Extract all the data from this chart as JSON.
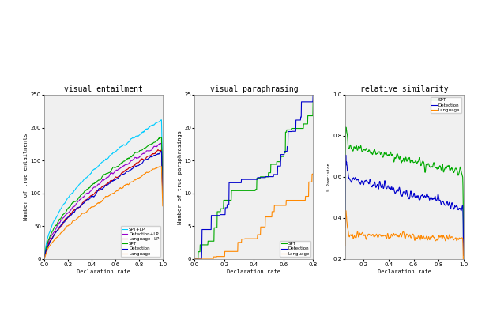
{
  "title1": "visual entailment",
  "title2": "visual paraphrasing",
  "title3": "relative similarity",
  "xlabel": "Declaration rate",
  "ylabel1": "Number of true entailments",
  "ylabel2": "Number of true paraphrasings",
  "ylabel3": "% Precision",
  "ylim1": [
    0,
    250
  ],
  "ylim2": [
    0,
    25
  ],
  "ylim3_min": 0.25,
  "ylim3_max": 1.0,
  "legend1": [
    "SPT+LP",
    "Detection+LP",
    "Language+LP",
    "SPT",
    "Detection",
    "Language"
  ],
  "legend2": [
    "SPT",
    "Detection",
    "Language"
  ],
  "legend3": [
    "SPT",
    "Detection",
    "Language"
  ],
  "colors1": [
    "#00ccff",
    "#9900cc",
    "#cc0000",
    "#00aa00",
    "#0000cc",
    "#ff8800"
  ],
  "colors2": [
    "#00aa00",
    "#0000cc",
    "#ff8800"
  ],
  "colors3": [
    "#00aa00",
    "#0000cc",
    "#ff8800"
  ],
  "bg_color": "#f0f0f0",
  "fig_bg": "#ffffff",
  "title_fontsize": 7,
  "label_fontsize": 5,
  "tick_fontsize": 5,
  "legend_fontsize": 4,
  "linewidth": 0.8
}
